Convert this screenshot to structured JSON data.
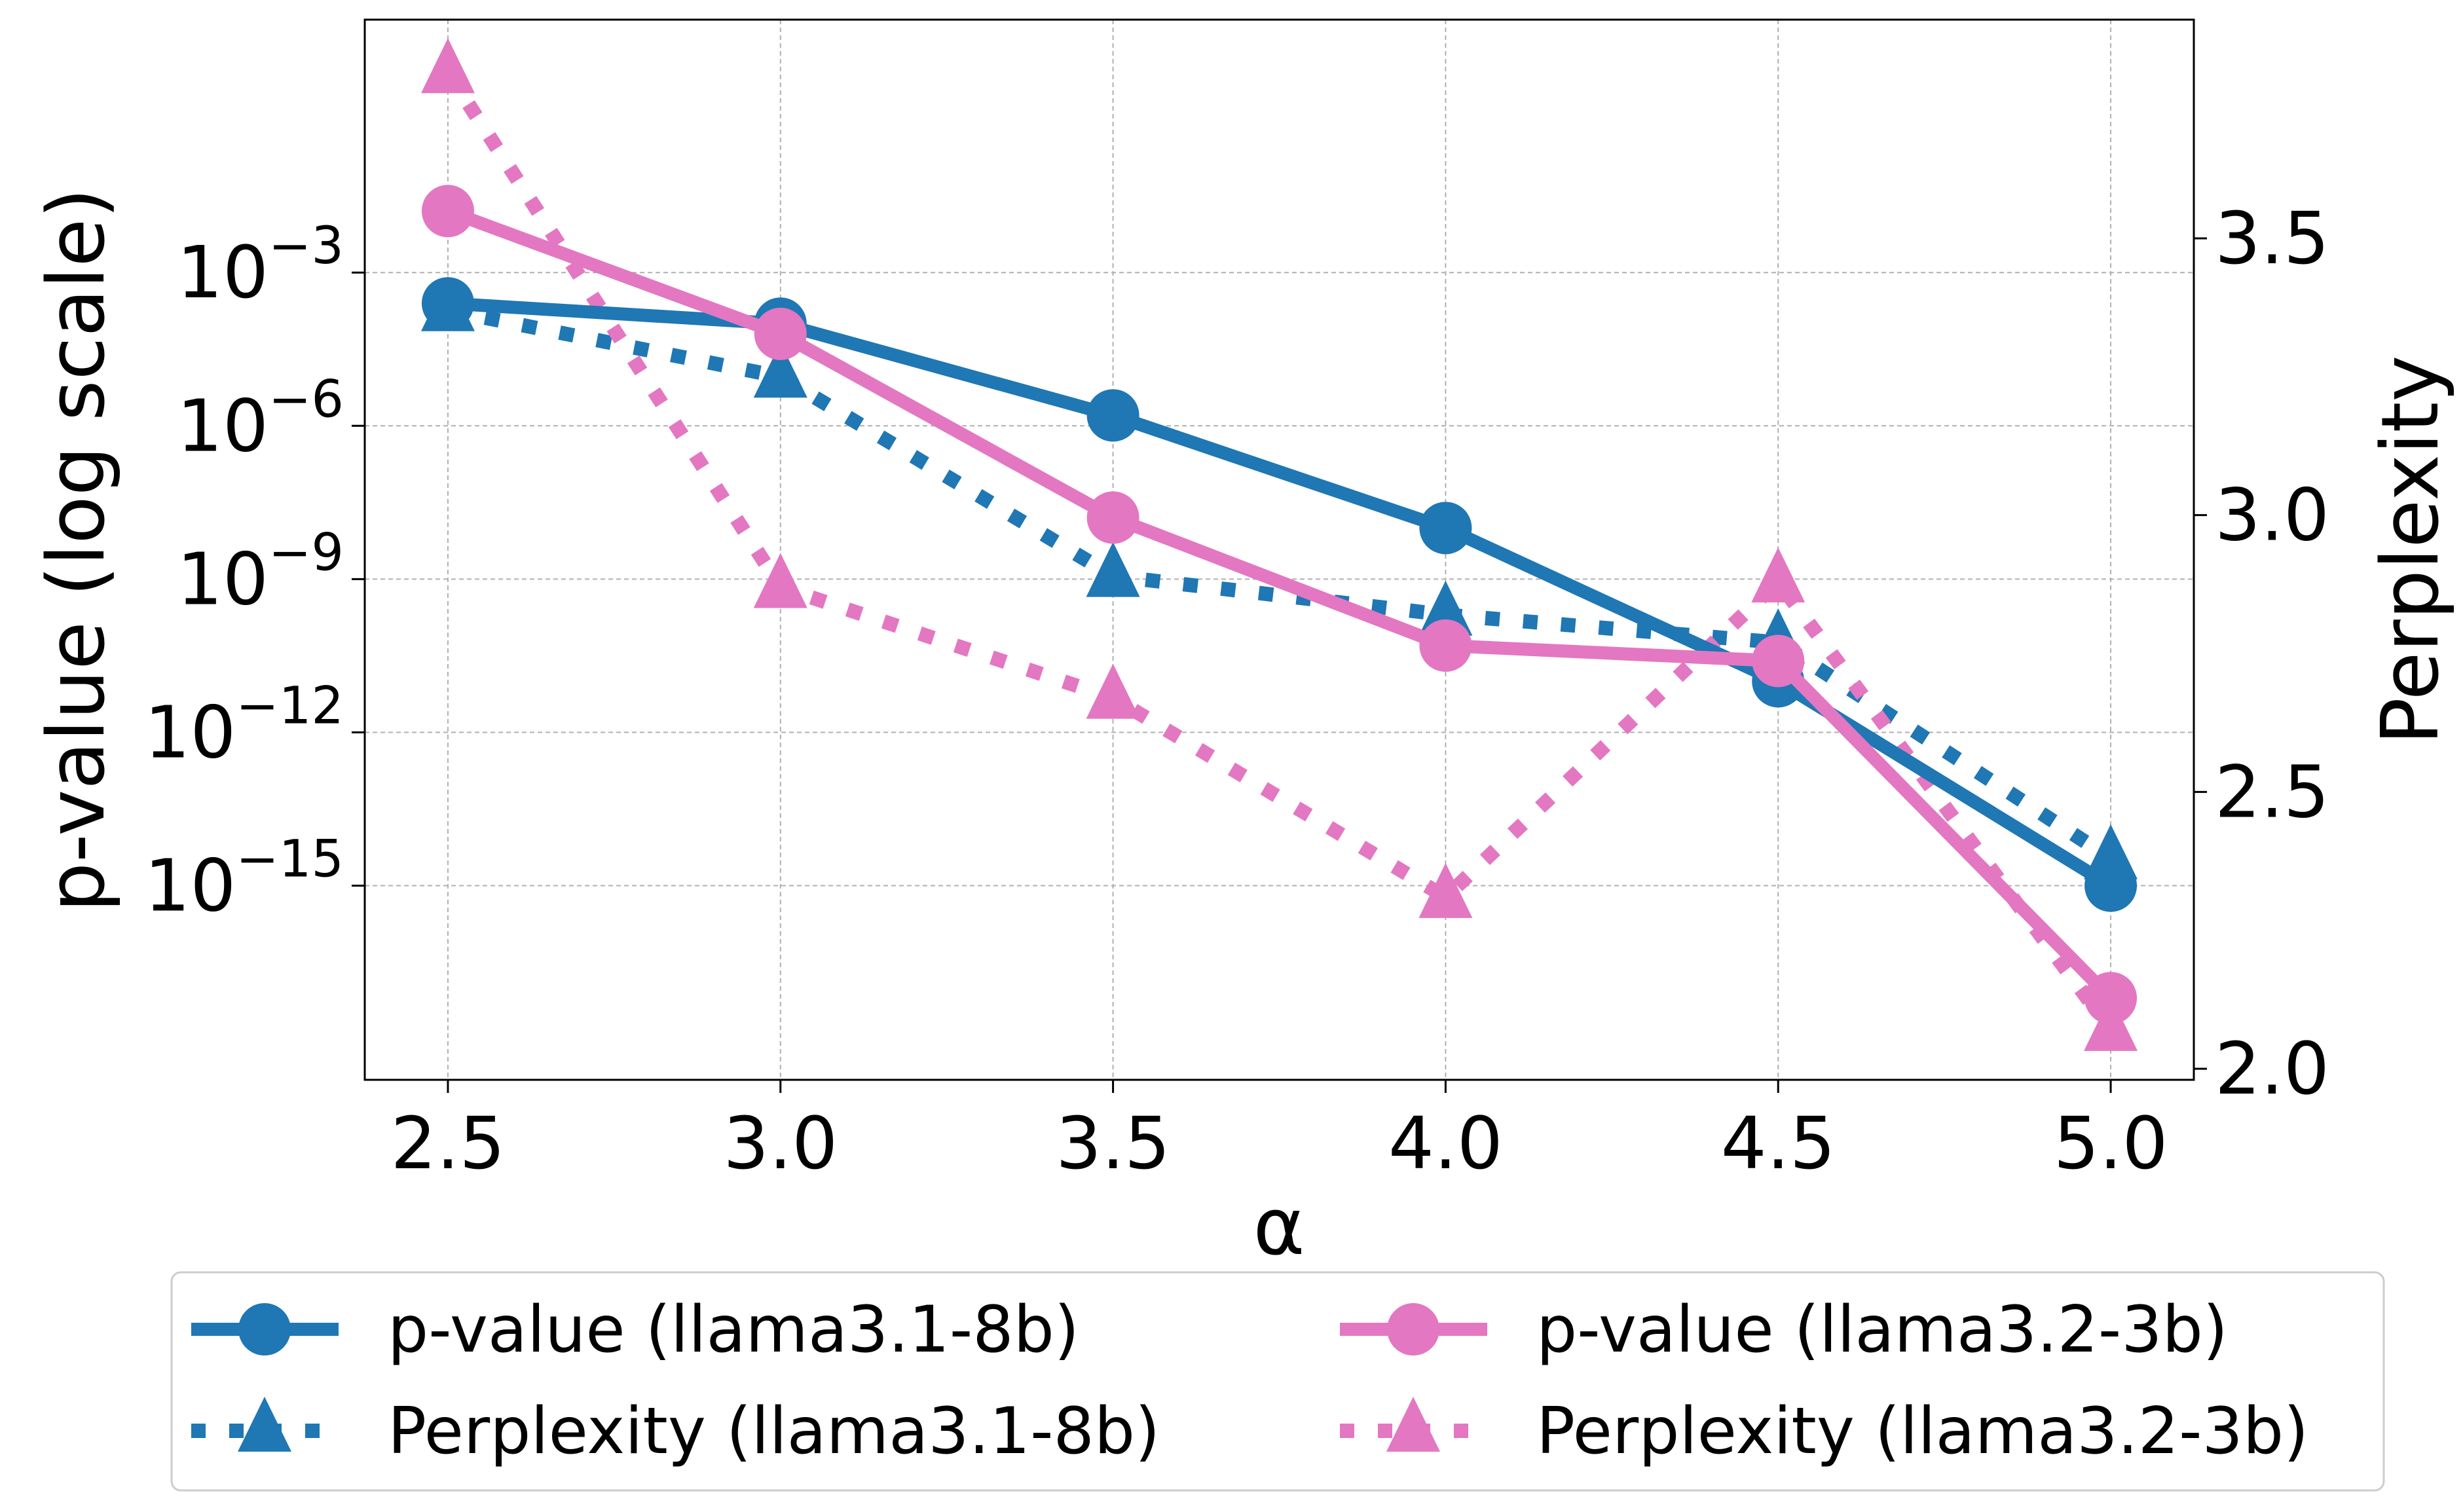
{
  "chart_data": {
    "type": "line",
    "x_values": [
      2.5,
      3.0,
      3.5,
      4.0,
      4.5,
      5.0
    ],
    "x_tick_labels": [
      "2.5",
      "3.0",
      "3.5",
      "4.0",
      "4.5",
      "5.0"
    ],
    "xlabel": "α",
    "xlim": [
      2.375,
      5.125
    ],
    "left_axis": {
      "label": "p-value (log scale)",
      "scale": "log",
      "ylim_exponent": [
        -18.8,
        1.95
      ],
      "ticks": [
        {
          "exponent": -3,
          "base": "10",
          "sup": "−3"
        },
        {
          "exponent": -6,
          "base": "10",
          "sup": "−6"
        },
        {
          "exponent": -9,
          "base": "10",
          "sup": "−9"
        },
        {
          "exponent": -12,
          "base": "10",
          "sup": "−12"
        },
        {
          "exponent": -15,
          "base": "10",
          "sup": "−15"
        }
      ]
    },
    "right_axis": {
      "label": "Perplexity",
      "scale": "linear",
      "ylim": [
        1.98,
        3.895
      ],
      "ticks": [
        {
          "value": 2.0,
          "label": "2.0"
        },
        {
          "value": 2.5,
          "label": "2.5"
        },
        {
          "value": 3.0,
          "label": "3.0"
        },
        {
          "value": 3.5,
          "label": "3.5"
        }
      ]
    },
    "grid": true,
    "legend_position": "bottom-outside",
    "series": [
      {
        "name": "p-value (llama3.1-8b)",
        "axis": "left",
        "style": "solid",
        "marker": "circle",
        "color": "#1f77b4",
        "values": [
          0.00025,
          0.0001,
          1.6e-06,
          1e-08,
          1e-11,
          1e-15
        ]
      },
      {
        "name": "Perplexity (llama3.1-8b)",
        "axis": "right",
        "style": "dotted",
        "marker": "triangle",
        "color": "#1f77b4",
        "values": [
          3.37,
          3.25,
          2.89,
          2.82,
          2.77,
          2.38
        ]
      },
      {
        "name": "p-value (llama3.2-3b)",
        "axis": "left",
        "style": "solid",
        "marker": "circle",
        "color": "#e377c2",
        "values": [
          0.016,
          6.3e-05,
          1.6e-08,
          5e-11,
          2.5e-11,
          6.3e-18
        ]
      },
      {
        "name": "Perplexity (llama3.2-3b)",
        "axis": "right",
        "style": "dotted",
        "marker": "triangle",
        "color": "#e377c2",
        "values": [
          3.8,
          2.87,
          2.67,
          2.31,
          2.88,
          2.07
        ]
      }
    ],
    "legend_order": [
      0,
      2,
      1,
      3
    ]
  }
}
